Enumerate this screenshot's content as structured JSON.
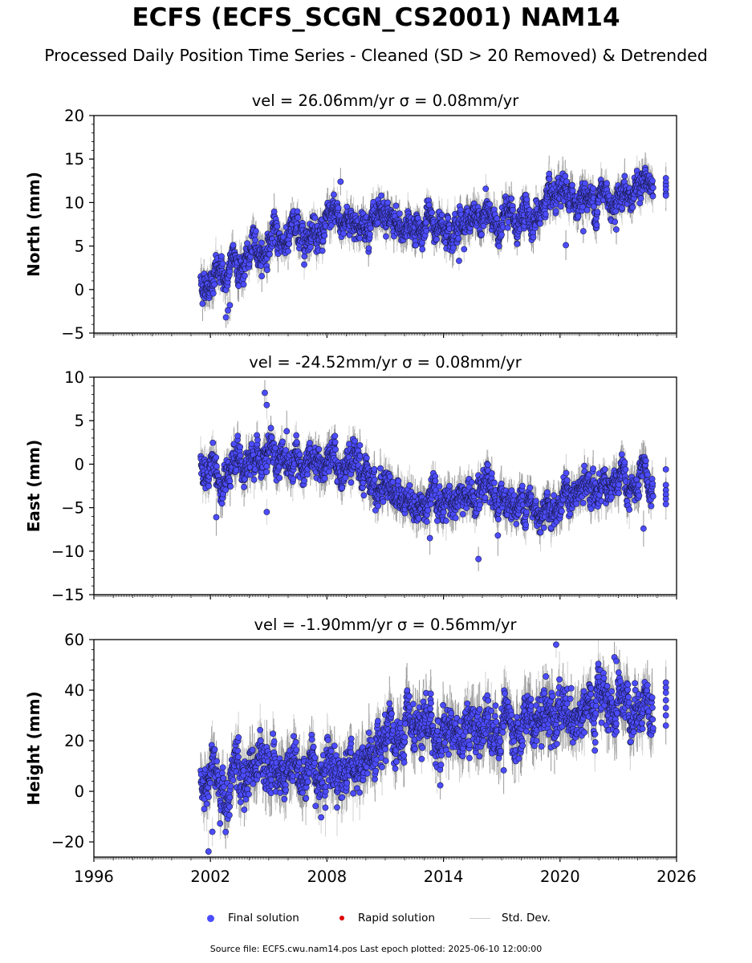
{
  "title": "ECFS (ECFS_SCGN_CS2001) NAM14",
  "subtitle": "Processed Daily Position Time Series - Cleaned (SD > 20 Removed) & Detrended",
  "legend": {
    "final_label": "Final solution",
    "rapid_label": "Rapid solution",
    "std_label": "Std. Dev.",
    "final_color": "#4c4cff",
    "rapid_color": "#e00000",
    "std_color": "#cfcfcf"
  },
  "footer": "Source file: ECFS.cwu.nam14.pos  Last epoch plotted: 2025-06-10 12:00:00",
  "chart_data": [
    {
      "type": "scatter",
      "component": "north",
      "panel_title": "vel = 26.06mm/yr   σ = 0.08mm/yr",
      "ylabel": "North (mm)",
      "xlim": [
        1996,
        2026
      ],
      "ylim": [
        -5,
        20
      ],
      "yticks": [
        -5,
        0,
        5,
        10,
        15,
        20
      ],
      "trend": [
        [
          2001.5,
          1.0
        ],
        [
          2002.5,
          1.5
        ],
        [
          2003.5,
          3.0
        ],
        [
          2004.5,
          4.5
        ],
        [
          2005.5,
          6.0
        ],
        [
          2006.5,
          6.5
        ],
        [
          2008,
          7.5
        ],
        [
          2009,
          8.0
        ],
        [
          2010,
          7.5
        ],
        [
          2012,
          7.2
        ],
        [
          2014,
          7.5
        ],
        [
          2016,
          8.0
        ],
        [
          2018,
          8.0
        ],
        [
          2019.5,
          9.5
        ],
        [
          2020.5,
          10.5
        ],
        [
          2022,
          10.5
        ],
        [
          2023.5,
          11.5
        ],
        [
          2024.8,
          12.0
        ]
      ],
      "noise_sd": 1.1,
      "outliers": [
        [
          2002.8,
          -3.2
        ],
        [
          2002.9,
          -2.4
        ],
        [
          2003.0,
          -1.8
        ],
        [
          2008.7,
          12.4
        ],
        [
          2010.8,
          10.8
        ],
        [
          2020.3,
          5.1
        ],
        [
          2021.2,
          6.7
        ],
        [
          2022.9,
          6.9
        ],
        [
          2014.8,
          3.3
        ]
      ],
      "recent": [
        12.8,
        12.3,
        11.9,
        11.5,
        11.0,
        10.8
      ]
    },
    {
      "type": "scatter",
      "component": "east",
      "panel_title": "vel = -24.52mm/yr   σ = 0.08mm/yr",
      "ylabel": "East (mm)",
      "xlim": [
        1996,
        2026
      ],
      "ylim": [
        -15,
        10
      ],
      "yticks": [
        -15,
        -10,
        -5,
        0,
        5,
        10
      ],
      "trend": [
        [
          2001.5,
          -0.5
        ],
        [
          2003,
          -0.5
        ],
        [
          2004.5,
          0.5
        ],
        [
          2005.5,
          0.5
        ],
        [
          2007,
          0.0
        ],
        [
          2009,
          -0.5
        ],
        [
          2010,
          -1.0
        ],
        [
          2011,
          -2.5
        ],
        [
          2012,
          -4.0
        ],
        [
          2014,
          -4.0
        ],
        [
          2016,
          -4.0
        ],
        [
          2018,
          -4.5
        ],
        [
          2019,
          -5.0
        ],
        [
          2020,
          -4.0
        ],
        [
          2021,
          -3.5
        ],
        [
          2022,
          -2.5
        ],
        [
          2023,
          -2.5
        ],
        [
          2024.8,
          -3.0
        ]
      ],
      "noise_sd": 1.2,
      "outliers": [
        [
          2004.8,
          8.2
        ],
        [
          2004.9,
          6.8
        ],
        [
          2015.8,
          -10.9
        ],
        [
          2013.3,
          -8.5
        ],
        [
          2002.3,
          -6.1
        ],
        [
          2016.8,
          -8.2
        ],
        [
          2024.3,
          -7.4
        ],
        [
          2004.9,
          -5.5
        ]
      ],
      "recent": [
        -0.6,
        -2.4,
        -3.0,
        -3.5,
        -4.0,
        -4.6
      ]
    },
    {
      "type": "scatter",
      "component": "height",
      "panel_title": "vel = -1.90mm/yr   σ = 0.56mm/yr",
      "ylabel": "Height (mm)",
      "xlim": [
        1996,
        2026
      ],
      "ylim": [
        -26,
        60
      ],
      "yticks": [
        -20,
        0,
        20,
        40,
        60
      ],
      "xticks": [
        1996,
        2002,
        2008,
        2014,
        2020,
        2026
      ],
      "trend": [
        [
          2001.5,
          3
        ],
        [
          2003,
          5
        ],
        [
          2005,
          8
        ],
        [
          2007,
          10
        ],
        [
          2009,
          9
        ],
        [
          2010,
          12
        ],
        [
          2011,
          18
        ],
        [
          2013,
          22
        ],
        [
          2015,
          26
        ],
        [
          2017,
          27
        ],
        [
          2019,
          28
        ],
        [
          2020.5,
          30
        ],
        [
          2022,
          33
        ],
        [
          2023,
          37
        ],
        [
          2024.8,
          33
        ]
      ],
      "noise_sd": 6.0,
      "outliers": [
        [
          2019.8,
          58
        ],
        [
          2001.9,
          -23.8
        ],
        [
          2002.1,
          -16
        ],
        [
          2007.7,
          -10.3
        ],
        [
          2017.1,
          8.3
        ],
        [
          2022.8,
          53
        ],
        [
          2022.9,
          51.5
        ]
      ],
      "recent": [
        43,
        41,
        39,
        36,
        33,
        30,
        26
      ]
    }
  ]
}
